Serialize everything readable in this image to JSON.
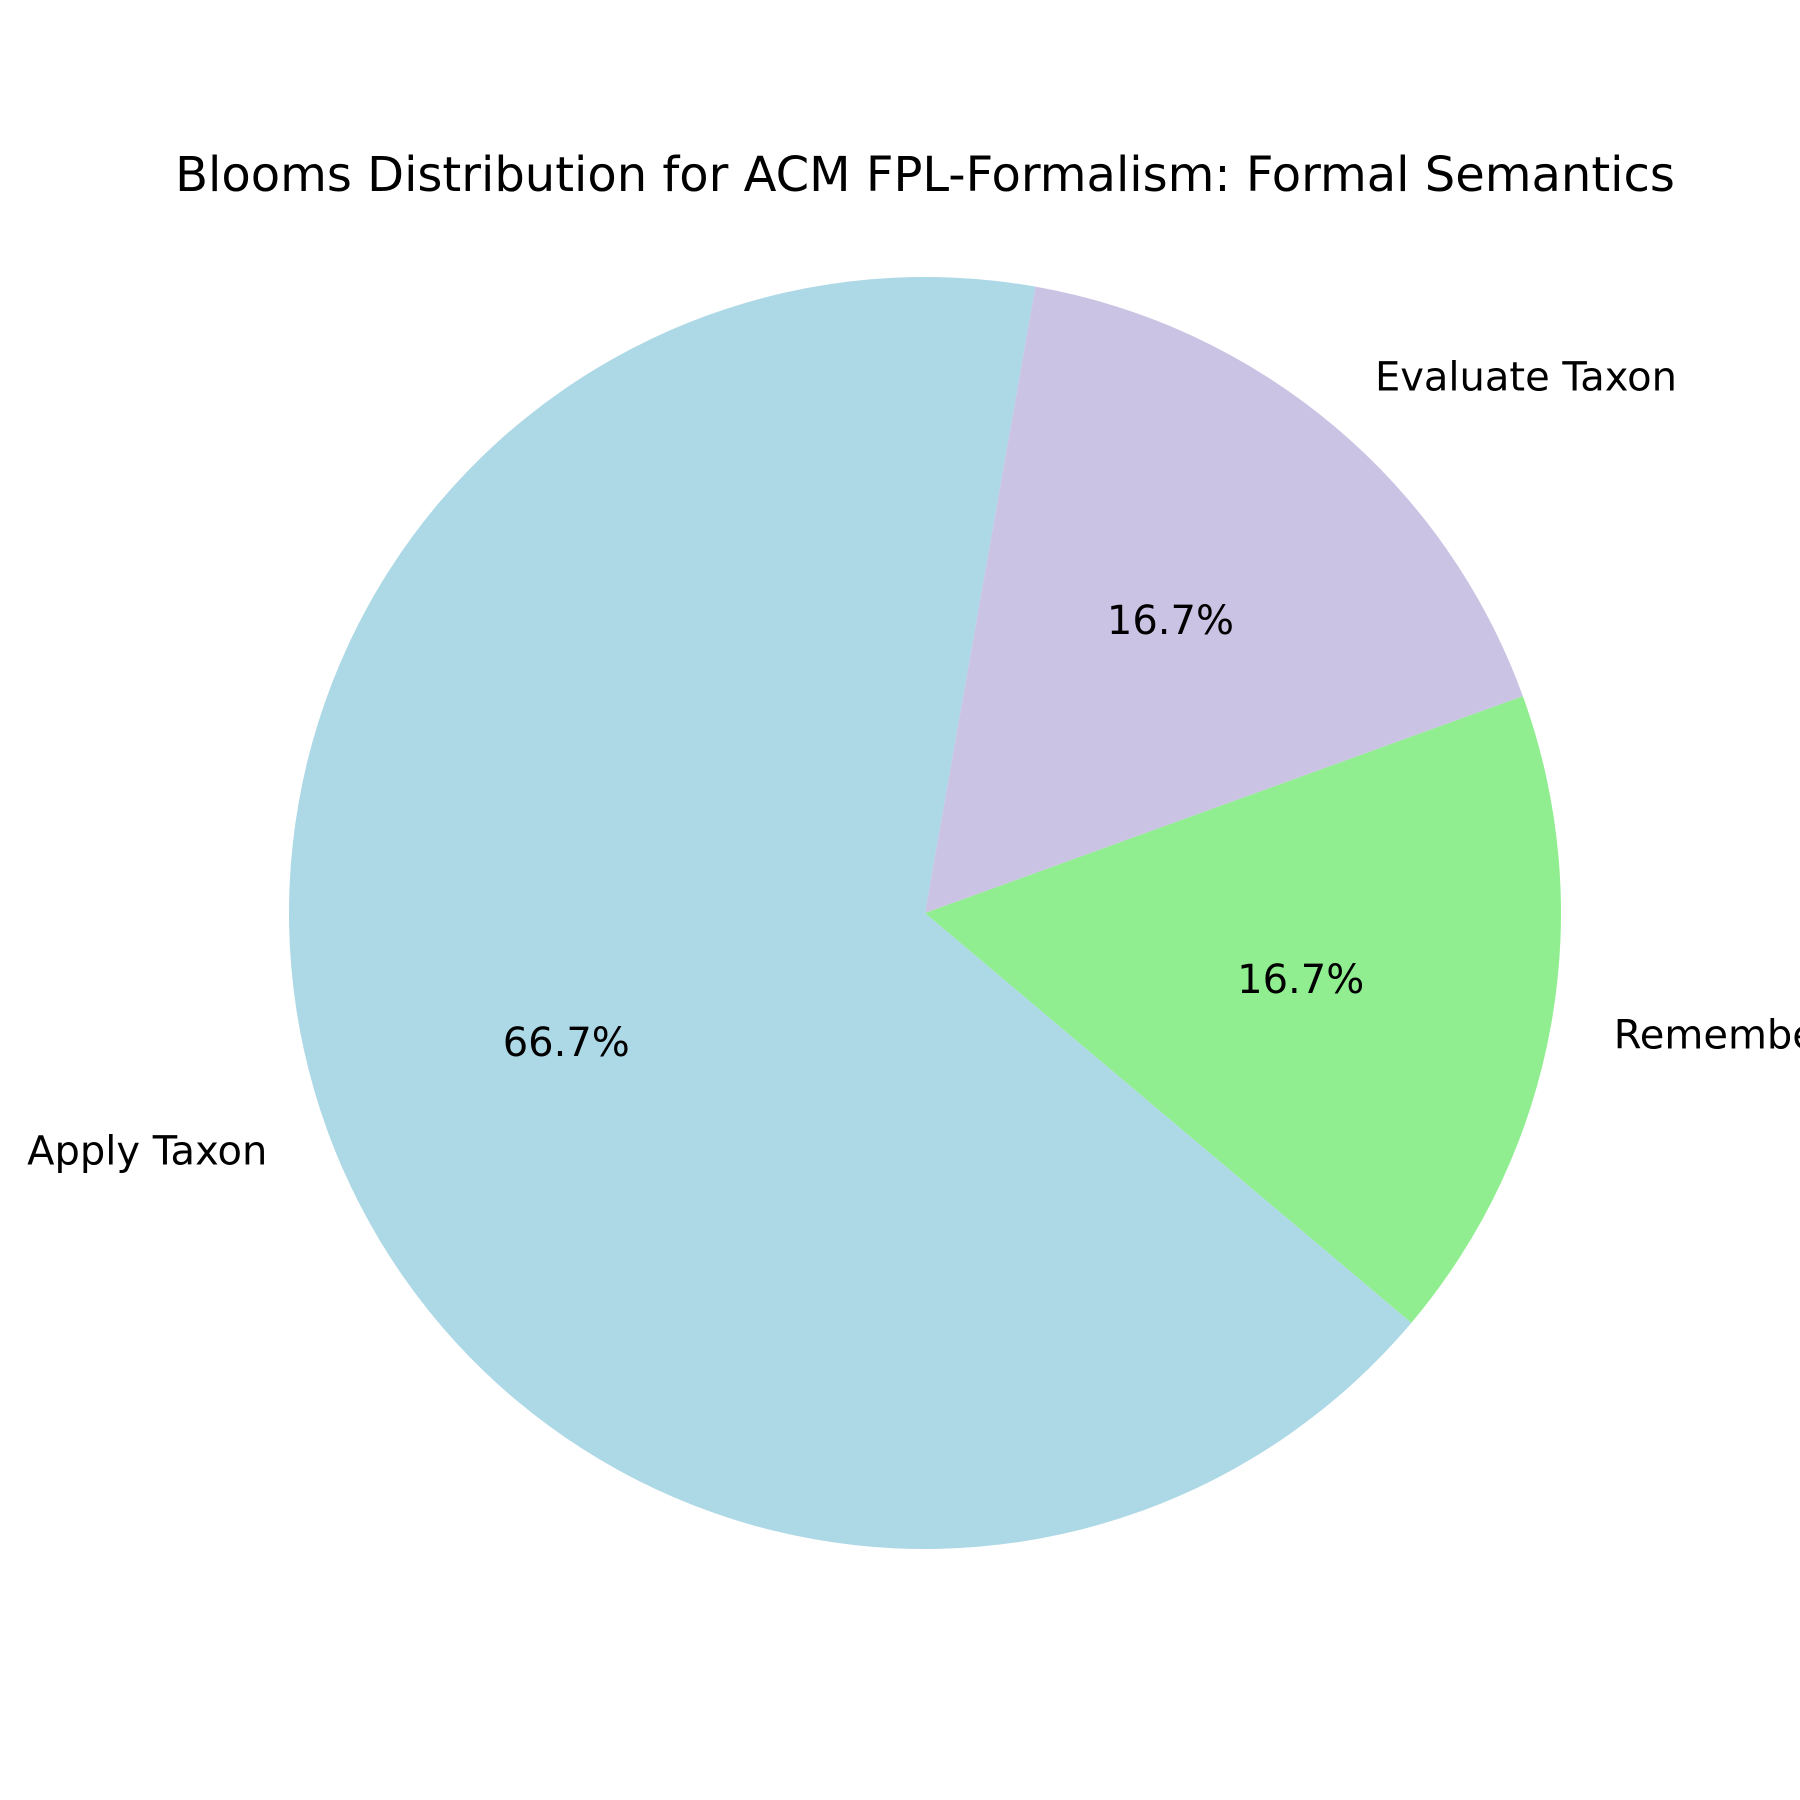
{
  "chart_data": {
    "type": "pie",
    "title": "Blooms Distribution for ACM FPL-Formalism: Formal Semantics",
    "slices": [
      {
        "label": "Apply Taxon",
        "value": 66.7,
        "pct_label": "66.7%",
        "color": "#add8e6"
      },
      {
        "label": "Remember Taxon",
        "value": 16.7,
        "pct_label": "16.7%",
        "color": "#90ee90"
      },
      {
        "label": "Evaluate Taxon",
        "value": 16.7,
        "pct_label": "16.7%",
        "color": "#cbc3e3"
      }
    ],
    "start_angle_deg": 80,
    "legend": "none"
  }
}
